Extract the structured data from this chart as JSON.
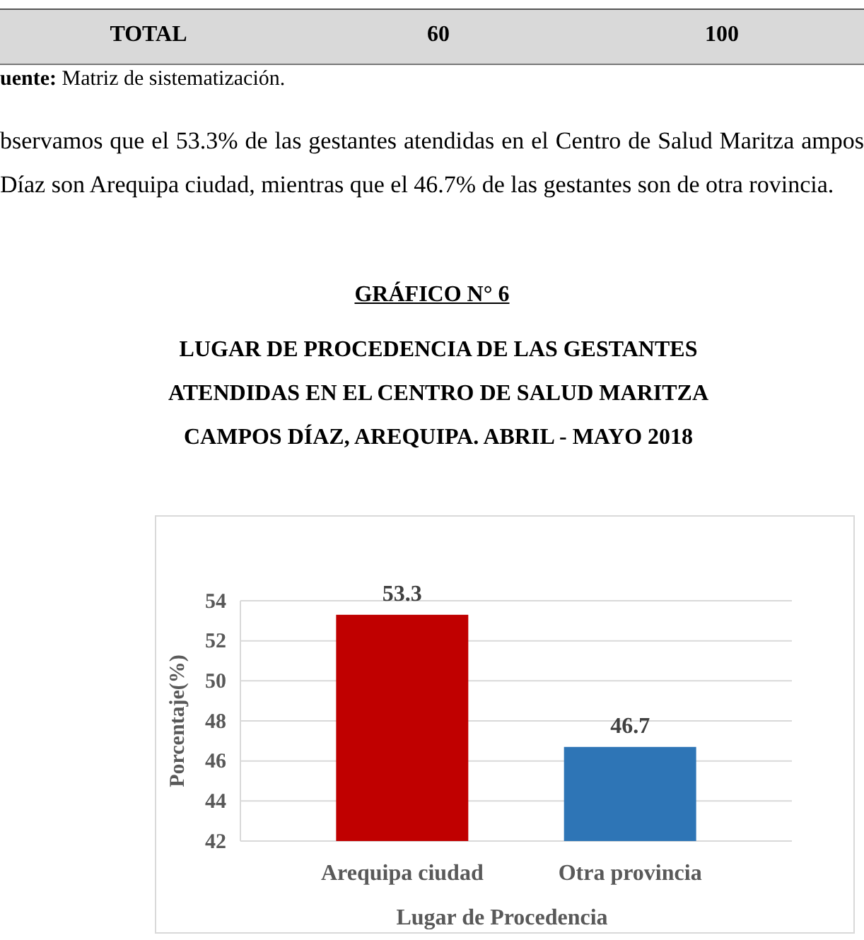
{
  "chart_data": {
    "type": "bar",
    "title": "GRÁFICO N° 6",
    "subtitle": "LUGAR DE PROCEDENCIA DE LAS GESTANTES ATENDIDAS EN EL CENTRO DE SALUD MARITZA CAMPOS DÍAZ, AREQUIPA. ABRIL - MAYO 2018",
    "annotations": [
      "TOTAL",
      "60",
      "100",
      "uente: Matriz de sistematización.",
      "bservamos que el 53.3% de las gestantes atendidas en el Centro de Salud Maritza ampos Díaz son Arequipa ciudad, mientras que el 46.7% de las gestantes son de otra rovincia."
    ],
    "categories": [
      "Arequipa ciudad",
      "Otra provincia"
    ],
    "values": [
      53.3,
      46.7
    ],
    "colors": [
      "#c00000",
      "#2e75b6"
    ],
    "xlabel": "Lugar de Procedencia",
    "ylabel": "Porcentaje(%)",
    "ylim": [
      42,
      54
    ],
    "yticks": [
      42,
      44,
      46,
      48,
      50,
      52,
      54
    ],
    "grid": "y",
    "data_labels": true
  }
}
